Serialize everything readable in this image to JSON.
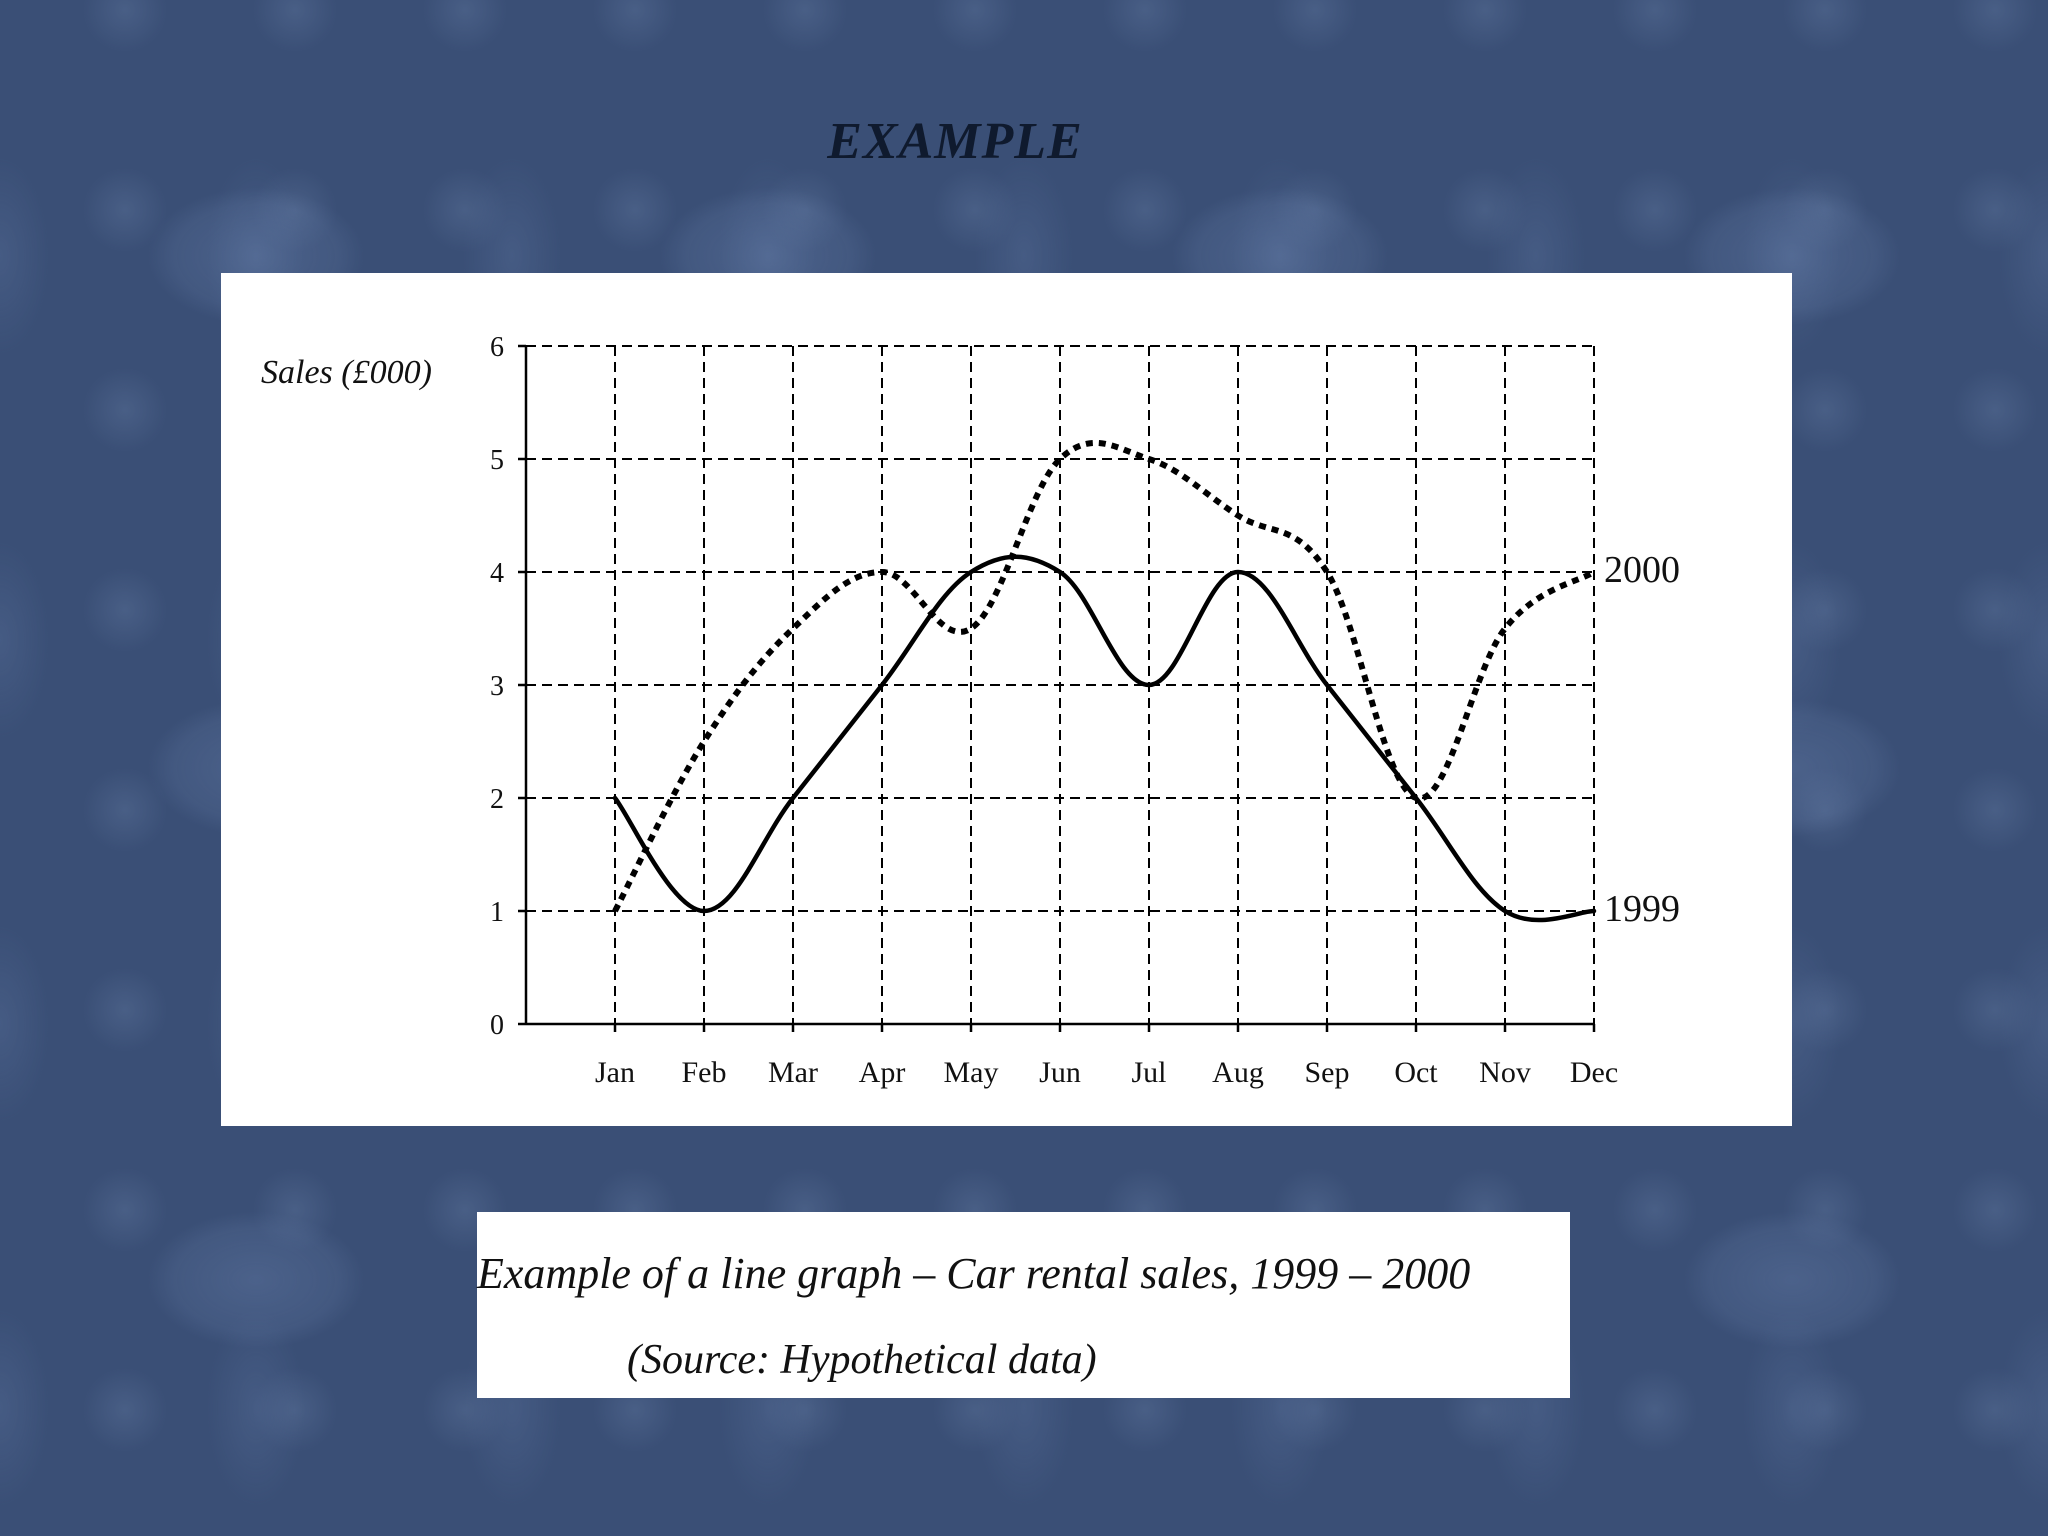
{
  "slide": {
    "title": "EXAMPLE"
  },
  "caption": {
    "title": "Example of a line graph – Car rental sales, 1999 – 2000",
    "source": "(Source:  Hypothetical data)"
  },
  "chart_data": {
    "type": "line",
    "title": "",
    "xlabel": "",
    "ylabel": "Sales (£000)",
    "categories": [
      "Jan",
      "Feb",
      "Mar",
      "Apr",
      "May",
      "Jun",
      "Jul",
      "Aug",
      "Sep",
      "Oct",
      "Nov",
      "Dec"
    ],
    "ylim": [
      0,
      6
    ],
    "yticks": [
      0,
      1,
      2,
      3,
      4,
      5,
      6
    ],
    "grid": true,
    "series": [
      {
        "name": "1999",
        "style": "solid",
        "color": "#000000",
        "values": [
          2,
          1,
          2,
          3,
          4,
          4,
          3,
          4,
          3,
          2,
          1,
          1
        ]
      },
      {
        "name": "2000",
        "style": "dotted",
        "color": "#000000",
        "values": [
          1,
          2.5,
          3.5,
          4,
          3.5,
          5,
          5,
          4.5,
          4,
          2,
          3.5,
          4
        ]
      }
    ]
  }
}
